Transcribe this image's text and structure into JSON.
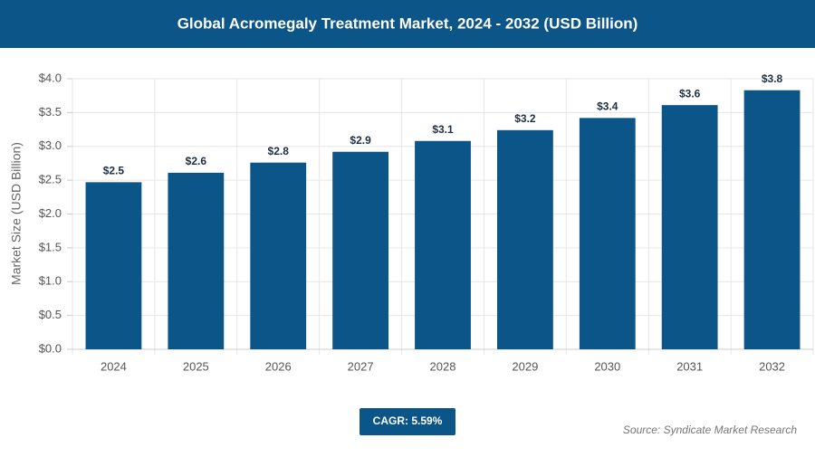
{
  "chart_data": {
    "type": "bar",
    "title": "Global Acromegaly Treatment Market, 2024 - 2032 (USD Billion)",
    "y_label": "Market Size (USD Billion)",
    "categories": [
      "2024",
      "2025",
      "2026",
      "2027",
      "2028",
      "2029",
      "2030",
      "2031",
      "2032"
    ],
    "values": [
      2.47,
      2.61,
      2.76,
      2.92,
      3.08,
      3.24,
      3.42,
      3.61,
      3.83
    ],
    "value_labels": [
      "$2.5",
      "$2.6",
      "$2.8",
      "$2.9",
      "$3.1",
      "$3.2",
      "$3.4",
      "$3.6",
      "$3.8"
    ],
    "color": "#0b5589",
    "ylim": [
      0,
      4
    ],
    "yticks": [
      {
        "value": 0,
        "label": "$0.0"
      },
      {
        "value": 0.5,
        "label": "$0.5"
      },
      {
        "value": 1,
        "label": "$1.0"
      },
      {
        "value": 1.5,
        "label": "$1.5"
      },
      {
        "value": 2,
        "label": "$2.0"
      },
      {
        "value": 2.5,
        "label": "$2.5"
      },
      {
        "value": 3,
        "label": "$3.0"
      },
      {
        "value": 3.5,
        "label": "$3.5"
      },
      {
        "value": 4,
        "label": "$4.0"
      }
    ],
    "grid": true,
    "cagr": "CAGR: 5.59%",
    "source": "Source: Syndicate Market Research"
  }
}
